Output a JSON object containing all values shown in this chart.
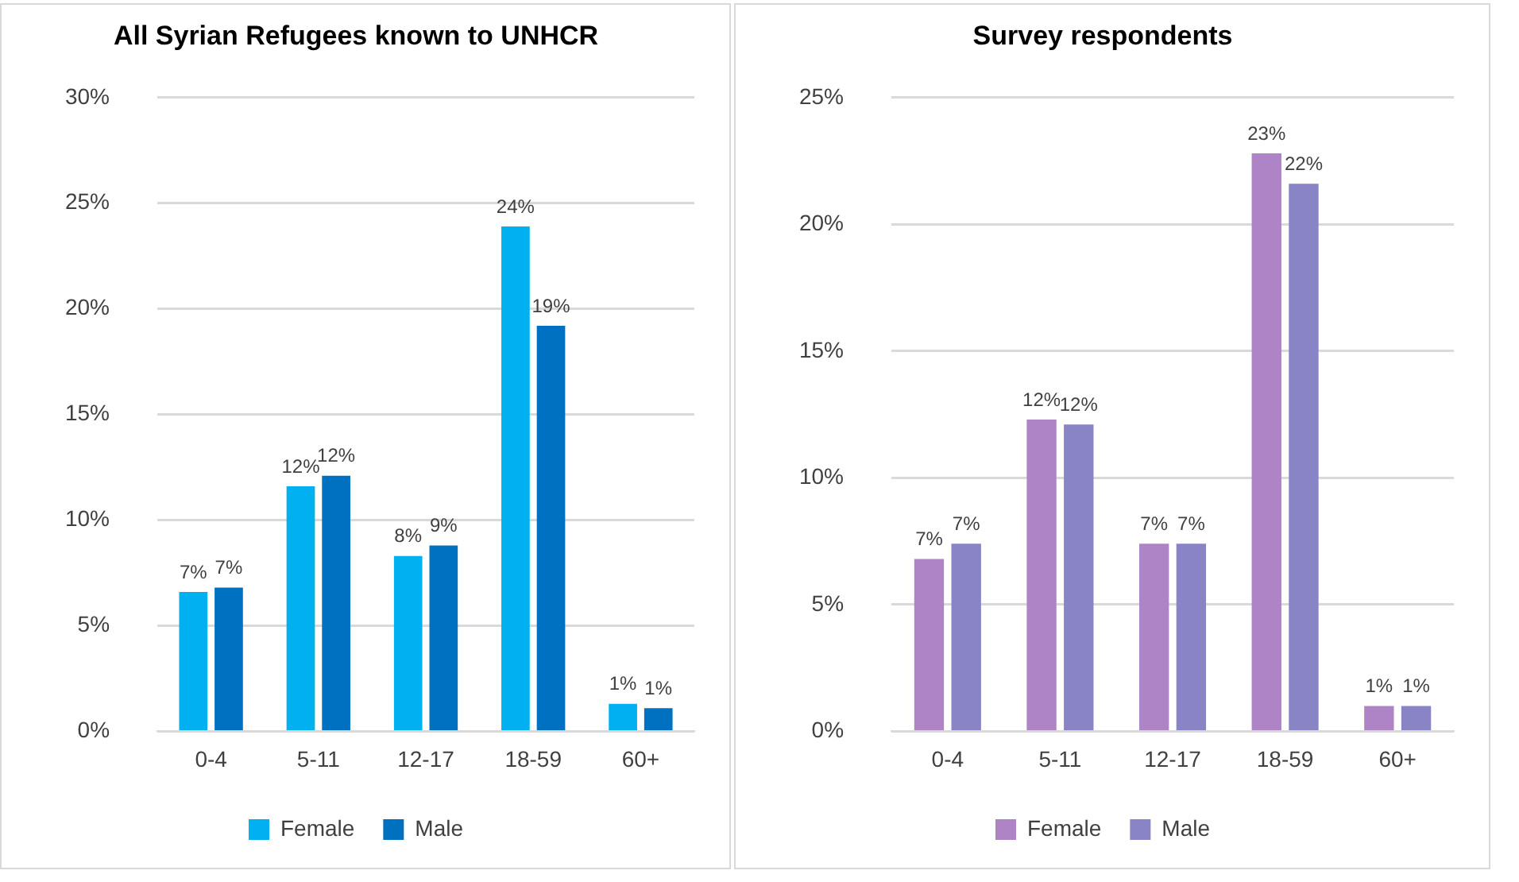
{
  "chart_data": [
    {
      "type": "bar",
      "title": "All Syrian Refugees known to UNHCR",
      "categories": [
        "0-4",
        "5-11",
        "12-17",
        "18-59",
        "60+"
      ],
      "series": [
        {
          "name": "Female",
          "color": "#00b0f0",
          "values": [
            6.6,
            11.6,
            8.3,
            23.9,
            1.3
          ],
          "value_labels": [
            "7%",
            "12%",
            "8%",
            "24%",
            "1%"
          ]
        },
        {
          "name": "Male",
          "color": "#0070c0",
          "values": [
            6.8,
            12.1,
            8.8,
            19.2,
            1.1
          ],
          "value_labels": [
            "7%",
            "12%",
            "9%",
            "19%",
            "1%"
          ]
        }
      ],
      "ylim": [
        0,
        30
      ],
      "yticks": [
        {
          "value": 0,
          "label": "0%"
        },
        {
          "value": 5,
          "label": "5%"
        },
        {
          "value": 10,
          "label": "10%"
        },
        {
          "value": 15,
          "label": "15%"
        },
        {
          "value": 20,
          "label": "20%"
        },
        {
          "value": 25,
          "label": "25%"
        },
        {
          "value": 30,
          "label": "30%"
        }
      ],
      "grid": "y",
      "legend": "bottom"
    },
    {
      "type": "bar",
      "title": "Survey respondents",
      "categories": [
        "0-4",
        "5-11",
        "12-17",
        "18-59",
        "60+"
      ],
      "series": [
        {
          "name": "Female",
          "color": "#ae84c6",
          "values": [
            6.8,
            12.3,
            7.4,
            22.8,
            1.0
          ],
          "value_labels": [
            "7%",
            "12%",
            "7%",
            "23%",
            "1%"
          ]
        },
        {
          "name": "Male",
          "color": "#8884c6",
          "values": [
            7.4,
            12.1,
            7.4,
            21.6,
            1.0
          ],
          "value_labels": [
            "7%",
            "12%",
            "7%",
            "22%",
            "1%"
          ]
        }
      ],
      "ylim": [
        0,
        25
      ],
      "yticks": [
        {
          "value": 0,
          "label": "0%"
        },
        {
          "value": 5,
          "label": "5%"
        },
        {
          "value": 10,
          "label": "10%"
        },
        {
          "value": 15,
          "label": "15%"
        },
        {
          "value": 20,
          "label": "20%"
        },
        {
          "value": 25,
          "label": "25%"
        }
      ],
      "grid": "y",
      "legend": "bottom"
    }
  ]
}
